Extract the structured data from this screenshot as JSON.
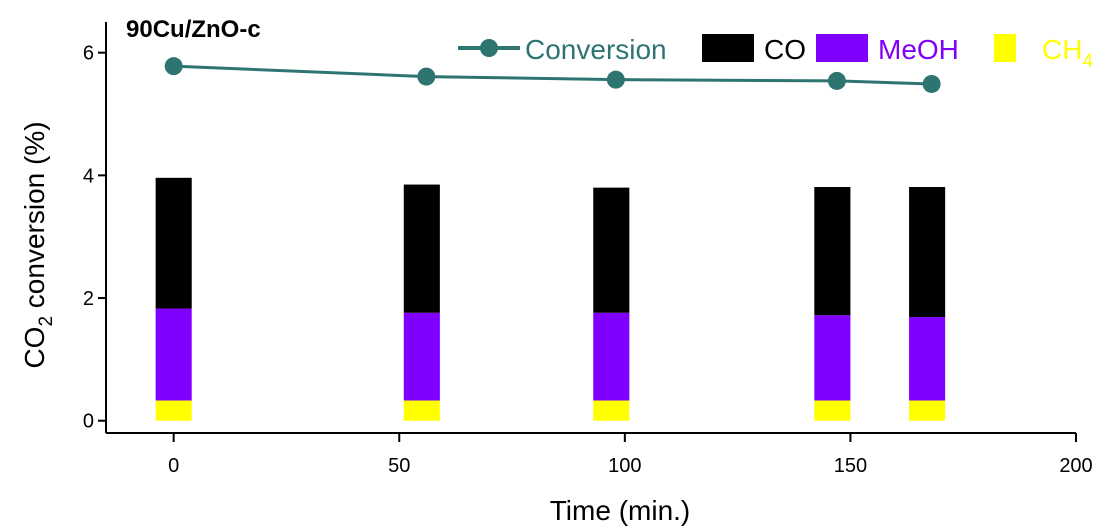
{
  "chart_data": {
    "type": "bar",
    "title": "90Cu/ZnO-c",
    "xlabel": "Time (min.)",
    "ylabel_prefix": "CO",
    "ylabel_sub": "2",
    "ylabel_suffix": " conversion (%)",
    "xlim": [
      -15,
      200
    ],
    "ylim": [
      -0.2,
      6.5
    ],
    "xticks": [
      0,
      50,
      100,
      150,
      200
    ],
    "yticks": [
      0,
      2,
      4,
      6
    ],
    "x": [
      0,
      55,
      97,
      146,
      167
    ],
    "bar_width": 8,
    "series": [
      {
        "name": "CH",
        "name_sub": "4",
        "kind": "stacked-bar",
        "color": "#ffff00",
        "values": [
          0.33,
          0.33,
          0.33,
          0.33,
          0.33
        ]
      },
      {
        "name": "MeOH",
        "kind": "stacked-bar",
        "color": "#8000ff",
        "values": [
          1.5,
          1.43,
          1.43,
          1.39,
          1.36
        ]
      },
      {
        "name": "CO",
        "kind": "stacked-bar",
        "color": "#000000",
        "values": [
          2.13,
          2.09,
          2.04,
          2.09,
          2.12
        ]
      },
      {
        "name": "Conversion",
        "kind": "line",
        "color": "#2e7572",
        "x": [
          0,
          56,
          98,
          147,
          168
        ],
        "values": [
          5.78,
          5.61,
          5.56,
          5.54,
          5.49
        ]
      }
    ],
    "legend_placement": "top-right",
    "grid": false
  }
}
